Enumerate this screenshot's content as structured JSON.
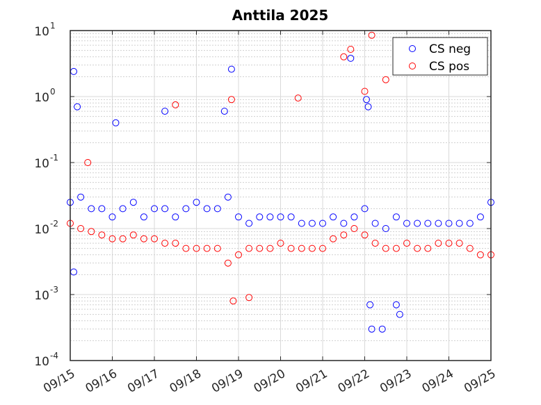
{
  "chart_data": {
    "type": "scatter",
    "title": "Anttila 2025",
    "xlabel": "",
    "ylabel": "",
    "yscale": "log",
    "ylim": [
      0.0001,
      10
    ],
    "xlim": [
      "2025-09-15",
      "2025-09-25"
    ],
    "x_tick_labels": [
      "09/15",
      "09/16",
      "09/17",
      "09/18",
      "09/19",
      "09/20",
      "09/21",
      "09/22",
      "09/23",
      "09/24",
      "09/25"
    ],
    "y_tick_labels": [
      {
        "base": "10",
        "exp": "1"
      },
      {
        "base": "10",
        "exp": "0"
      },
      {
        "base": "10",
        "exp": "-1"
      },
      {
        "base": "10",
        "exp": "-2"
      },
      {
        "base": "10",
        "exp": "-3"
      },
      {
        "base": "10",
        "exp": "-4"
      }
    ],
    "grid": true,
    "minor_grid": true,
    "legend_position": "top-right",
    "series": [
      {
        "name": "CS neg",
        "color": "#0000ff",
        "marker": "open-circle",
        "x_day_offset_values": "see points",
        "points": [
          [
            "2025-09-15 00:00",
            0.025
          ],
          [
            "2025-09-15 06:00",
            0.03
          ],
          [
            "2025-09-15 12:00",
            0.02
          ],
          [
            "2025-09-15 18:00",
            0.02
          ],
          [
            "2025-09-16 00:00",
            0.015
          ],
          [
            "2025-09-16 06:00",
            0.02
          ],
          [
            "2025-09-16 12:00",
            0.025
          ],
          [
            "2025-09-16 18:00",
            0.015
          ],
          [
            "2025-09-17 00:00",
            0.02
          ],
          [
            "2025-09-17 06:00",
            0.02
          ],
          [
            "2025-09-17 12:00",
            0.015
          ],
          [
            "2025-09-17 18:00",
            0.02
          ],
          [
            "2025-09-18 00:00",
            0.025
          ],
          [
            "2025-09-18 06:00",
            0.02
          ],
          [
            "2025-09-18 12:00",
            0.02
          ],
          [
            "2025-09-18 18:00",
            0.03
          ],
          [
            "2025-09-19 00:00",
            0.015
          ],
          [
            "2025-09-19 06:00",
            0.012
          ],
          [
            "2025-09-19 12:00",
            0.015
          ],
          [
            "2025-09-19 18:00",
            0.015
          ],
          [
            "2025-09-20 00:00",
            0.015
          ],
          [
            "2025-09-20 06:00",
            0.015
          ],
          [
            "2025-09-20 12:00",
            0.012
          ],
          [
            "2025-09-20 18:00",
            0.012
          ],
          [
            "2025-09-21 00:00",
            0.012
          ],
          [
            "2025-09-21 06:00",
            0.015
          ],
          [
            "2025-09-21 12:00",
            0.012
          ],
          [
            "2025-09-21 18:00",
            0.015
          ],
          [
            "2025-09-22 00:00",
            0.02
          ],
          [
            "2025-09-22 06:00",
            0.012
          ],
          [
            "2025-09-22 12:00",
            0.01
          ],
          [
            "2025-09-22 18:00",
            0.015
          ],
          [
            "2025-09-23 00:00",
            0.012
          ],
          [
            "2025-09-23 06:00",
            0.012
          ],
          [
            "2025-09-23 12:00",
            0.012
          ],
          [
            "2025-09-23 18:00",
            0.012
          ],
          [
            "2025-09-24 00:00",
            0.012
          ],
          [
            "2025-09-24 06:00",
            0.012
          ],
          [
            "2025-09-24 12:00",
            0.012
          ],
          [
            "2025-09-24 18:00",
            0.015
          ],
          [
            "2025-09-25 00:00",
            0.025
          ],
          [
            "2025-09-15 02:00",
            2.4
          ],
          [
            "2025-09-15 04:00",
            0.7
          ],
          [
            "2025-09-16 02:00",
            0.4
          ],
          [
            "2025-09-17 06:00",
            0.6
          ],
          [
            "2025-09-18 16:00",
            0.6
          ],
          [
            "2025-09-18 20:00",
            2.6
          ],
          [
            "2025-09-21 16:00",
            3.8
          ],
          [
            "2025-09-22 01:00",
            0.9
          ],
          [
            "2025-09-22 02:00",
            0.7
          ],
          [
            "2025-09-22 03:00",
            0.0007
          ],
          [
            "2025-09-22 04:00",
            0.0003
          ],
          [
            "2025-09-22 10:00",
            0.0003
          ],
          [
            "2025-09-22 18:00",
            0.0007
          ],
          [
            "2025-09-22 20:00",
            0.0005
          ],
          [
            "2025-09-15 02:00",
            0.0022
          ]
        ]
      },
      {
        "name": "CS pos",
        "color": "#ff0000",
        "marker": "open-circle",
        "points": [
          [
            "2025-09-15 00:00",
            0.012
          ],
          [
            "2025-09-15 06:00",
            0.01
          ],
          [
            "2025-09-15 12:00",
            0.009
          ],
          [
            "2025-09-15 18:00",
            0.008
          ],
          [
            "2025-09-16 00:00",
            0.007
          ],
          [
            "2025-09-16 06:00",
            0.007
          ],
          [
            "2025-09-16 12:00",
            0.008
          ],
          [
            "2025-09-16 18:00",
            0.007
          ],
          [
            "2025-09-17 00:00",
            0.007
          ],
          [
            "2025-09-17 06:00",
            0.006
          ],
          [
            "2025-09-17 12:00",
            0.006
          ],
          [
            "2025-09-17 18:00",
            0.005
          ],
          [
            "2025-09-18 00:00",
            0.005
          ],
          [
            "2025-09-18 06:00",
            0.005
          ],
          [
            "2025-09-18 12:00",
            0.005
          ],
          [
            "2025-09-18 18:00",
            0.003
          ],
          [
            "2025-09-19 00:00",
            0.004
          ],
          [
            "2025-09-19 06:00",
            0.005
          ],
          [
            "2025-09-19 12:00",
            0.005
          ],
          [
            "2025-09-19 18:00",
            0.005
          ],
          [
            "2025-09-20 00:00",
            0.006
          ],
          [
            "2025-09-20 06:00",
            0.005
          ],
          [
            "2025-09-20 12:00",
            0.005
          ],
          [
            "2025-09-20 18:00",
            0.005
          ],
          [
            "2025-09-21 00:00",
            0.005
          ],
          [
            "2025-09-21 06:00",
            0.007
          ],
          [
            "2025-09-21 12:00",
            0.008
          ],
          [
            "2025-09-21 18:00",
            0.01
          ],
          [
            "2025-09-22 00:00",
            0.008
          ],
          [
            "2025-09-22 06:00",
            0.006
          ],
          [
            "2025-09-22 12:00",
            0.005
          ],
          [
            "2025-09-22 18:00",
            0.005
          ],
          [
            "2025-09-23 00:00",
            0.006
          ],
          [
            "2025-09-23 06:00",
            0.005
          ],
          [
            "2025-09-23 12:00",
            0.005
          ],
          [
            "2025-09-23 18:00",
            0.006
          ],
          [
            "2025-09-24 00:00",
            0.006
          ],
          [
            "2025-09-24 06:00",
            0.006
          ],
          [
            "2025-09-24 12:00",
            0.005
          ],
          [
            "2025-09-24 18:00",
            0.004
          ],
          [
            "2025-09-25 00:00",
            0.004
          ],
          [
            "2025-09-15 10:00",
            0.1
          ],
          [
            "2025-09-17 12:00",
            0.75
          ],
          [
            "2025-09-18 20:00",
            0.9
          ],
          [
            "2025-09-18 21:00",
            0.0008
          ],
          [
            "2025-09-19 06:00",
            0.0009
          ],
          [
            "2025-09-20 10:00",
            0.95
          ],
          [
            "2025-09-21 12:00",
            4.0
          ],
          [
            "2025-09-21 16:00",
            5.2
          ],
          [
            "2025-09-22 04:00",
            8.5
          ],
          [
            "2025-09-22 12:00",
            1.8
          ],
          [
            "2025-09-22 00:00",
            1.2
          ]
        ]
      }
    ]
  }
}
